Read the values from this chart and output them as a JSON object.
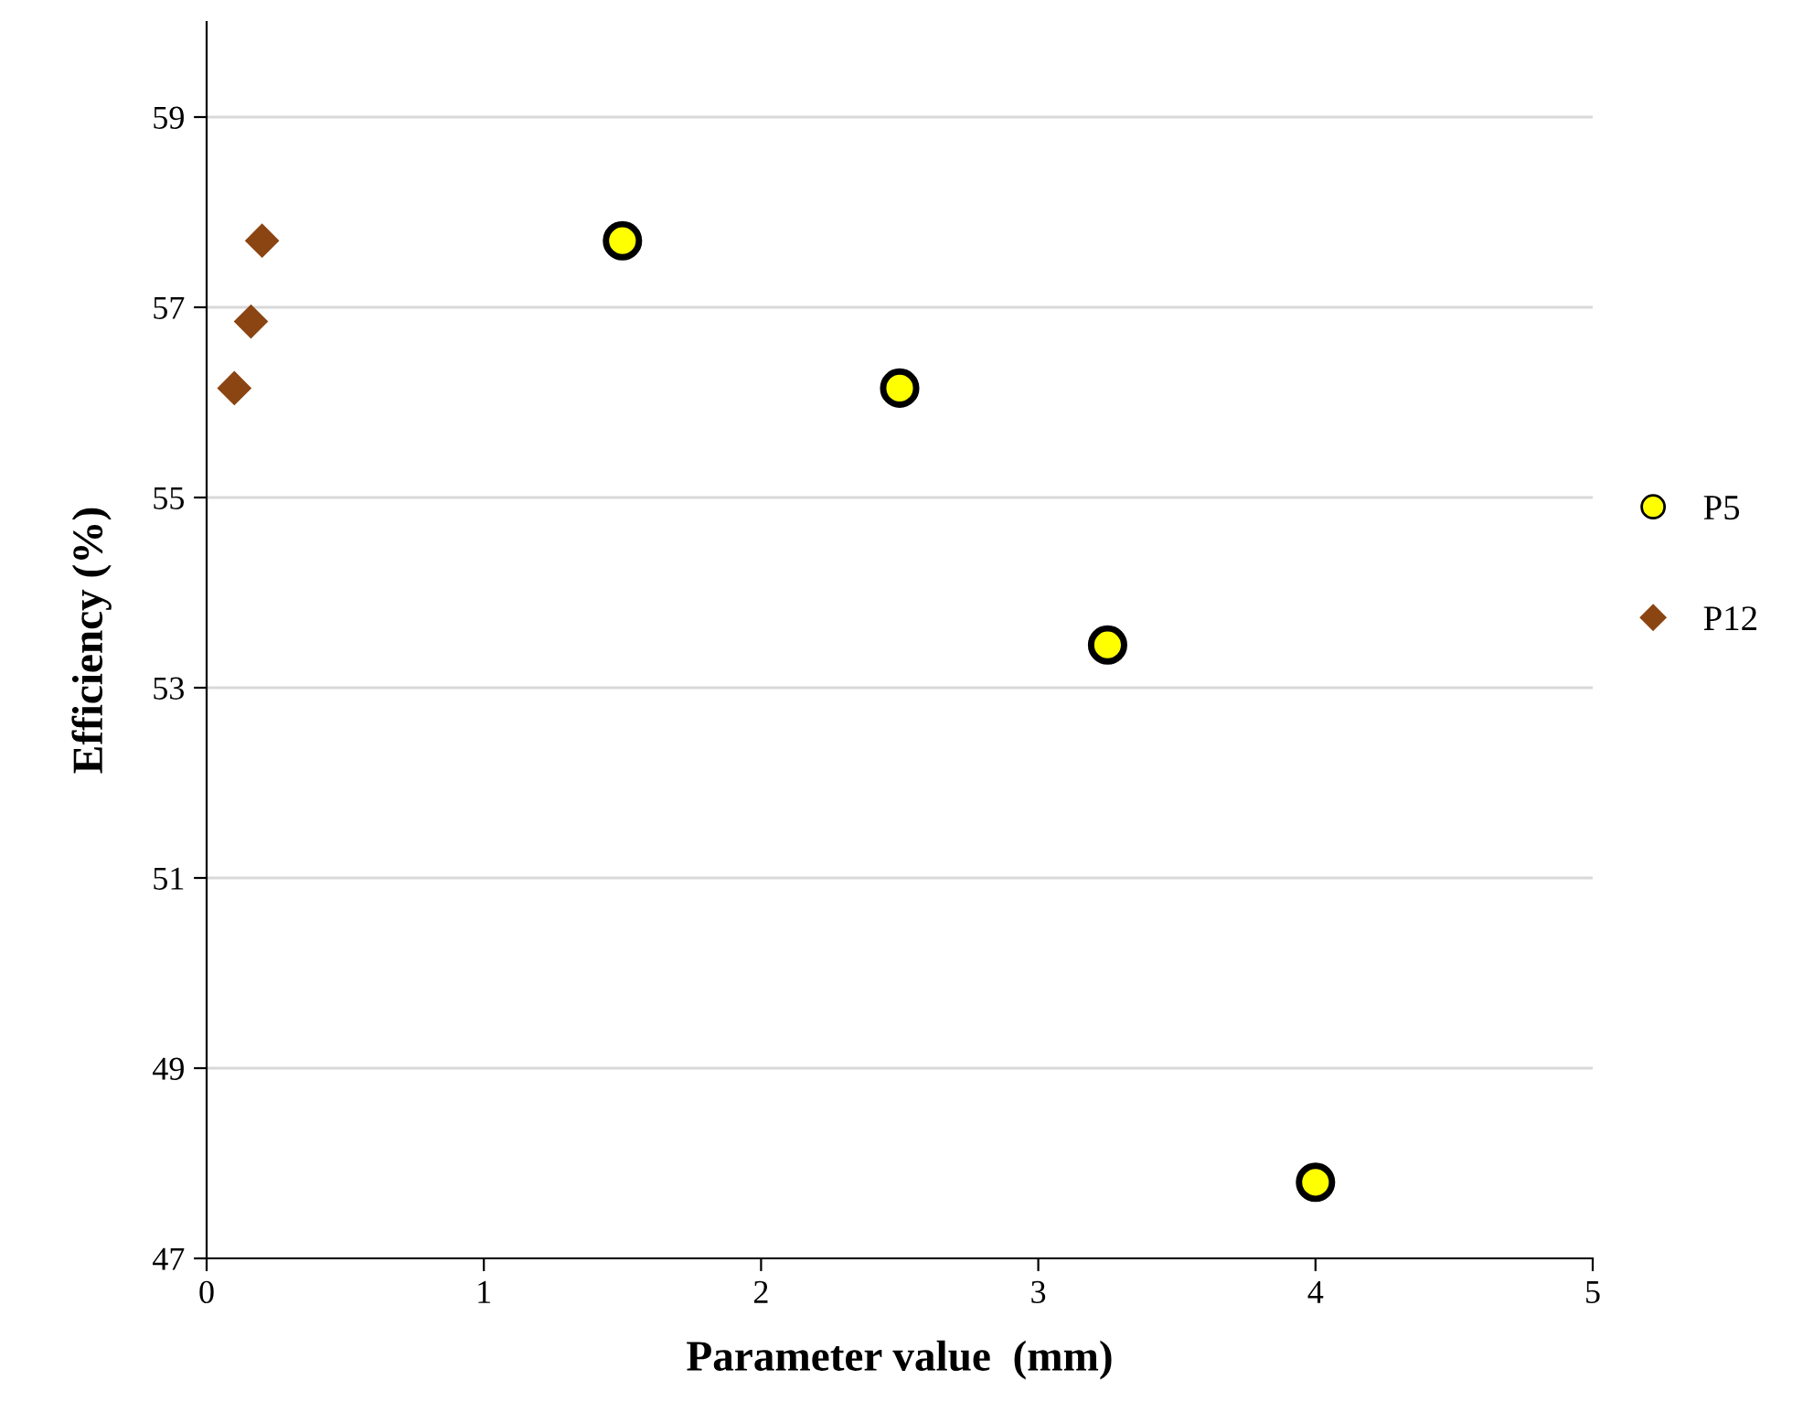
{
  "chart_data": {
    "type": "scatter",
    "xlabel": "Parameter value  (mm)",
    "ylabel": "Efficiency (%)",
    "xlim": [
      0,
      5
    ],
    "xticks": [
      0,
      1,
      2,
      3,
      4,
      5
    ],
    "ylim": [
      47,
      60
    ],
    "yticks": [
      47,
      49,
      51,
      53,
      55,
      57,
      59
    ],
    "grid": "y",
    "legend": "right",
    "series": [
      {
        "name": "P5",
        "color": "#ffff00",
        "marker": "circle",
        "x": [
          1.5,
          2.5,
          3.25,
          4.0
        ],
        "values": [
          57.7,
          56.15,
          53.45,
          47.8
        ]
      },
      {
        "name": "P12",
        "color": "#8b4513",
        "marker": "diamond",
        "x": [
          0.1,
          0.16,
          0.2
        ],
        "values": [
          56.15,
          56.85,
          57.7
        ]
      }
    ]
  }
}
